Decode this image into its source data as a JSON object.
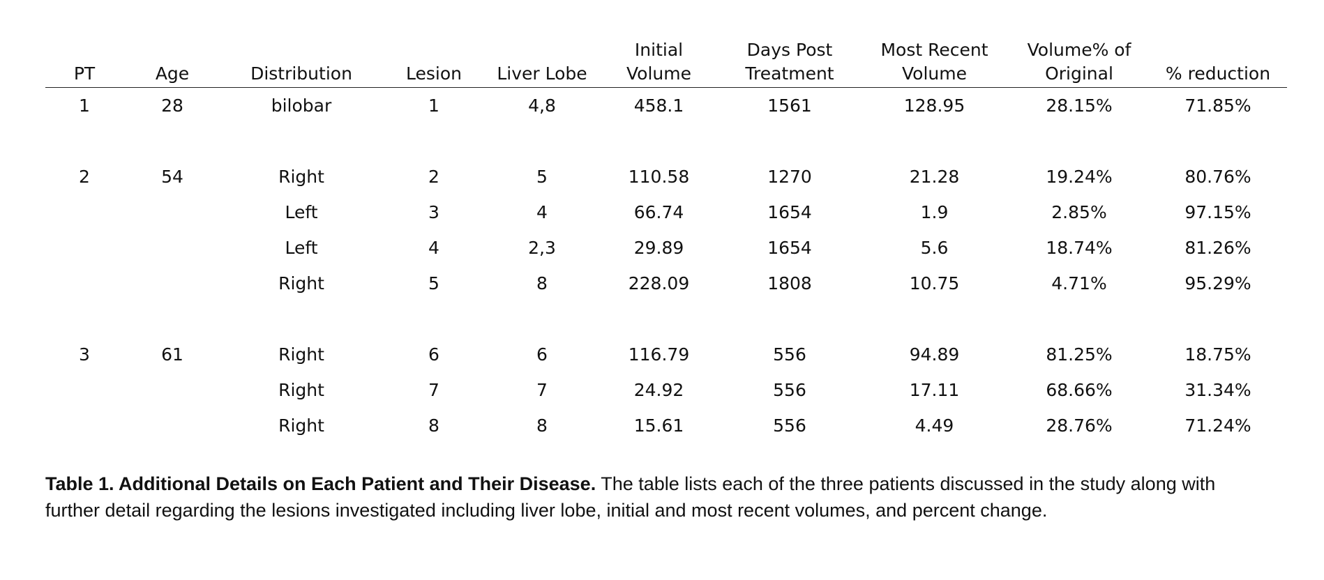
{
  "table": {
    "headers": [
      "PT",
      "Age",
      "Distribution",
      "Lesion",
      "Liver Lobe",
      "Initial\nVolume",
      "Days Post\nTreatment",
      "Most Recent\nVolume",
      "Volume% of\nOriginal",
      "% reduction"
    ],
    "rows": [
      [
        "1",
        "28",
        "bilobar",
        "1",
        "4,8",
        "458.1",
        "1561",
        "128.95",
        "28.15%",
        "71.85%"
      ],
      null,
      [
        "2",
        "54",
        "Right",
        "2",
        "5",
        "110.58",
        "1270",
        "21.28",
        "19.24%",
        "80.76%"
      ],
      [
        "",
        "",
        "Left",
        "3",
        "4",
        "66.74",
        "1654",
        "1.9",
        "2.85%",
        "97.15%"
      ],
      [
        "",
        "",
        "Left",
        "4",
        "2,3",
        "29.89",
        "1654",
        "5.6",
        "18.74%",
        "81.26%"
      ],
      [
        "",
        "",
        "Right",
        "5",
        "8",
        "228.09",
        "1808",
        "10.75",
        "4.71%",
        "95.29%"
      ],
      null,
      [
        "3",
        "61",
        "Right",
        "6",
        "6",
        "116.79",
        "556",
        "94.89",
        "81.25%",
        "18.75%"
      ],
      [
        "",
        "",
        "Right",
        "7",
        "7",
        "24.92",
        "556",
        "17.11",
        "68.66%",
        "31.34%"
      ],
      [
        "",
        "",
        "Right",
        "8",
        "8",
        "15.61",
        "556",
        "4.49",
        "28.76%",
        "71.24%"
      ]
    ]
  },
  "caption": {
    "title": "Table 1. Additional Details on Each Patient and Their Disease.",
    "body": " The table lists each of the three patients discussed in the study along with further detail regarding the lesions investigated including liver lobe, initial and most recent volumes, and percent change."
  }
}
